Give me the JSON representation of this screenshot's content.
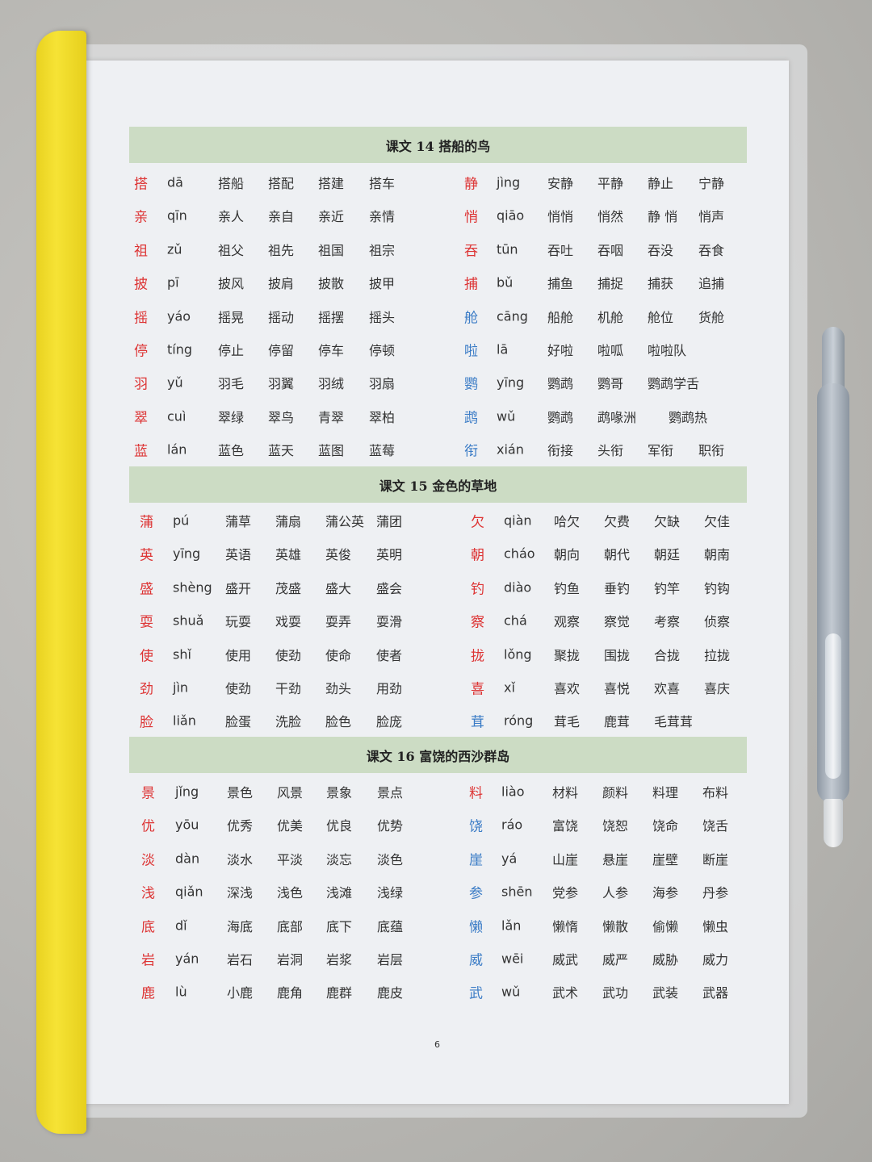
{
  "colors": {
    "red": "#dd3434",
    "blue": "#3b7cc6",
    "header_bg": "#ccdcc4"
  },
  "page_number": "6",
  "sections": [
    {
      "title": "课文 14  搭船的鸟",
      "left": [
        {
          "char": "搭",
          "pinyin": "dā",
          "color": "red",
          "words": [
            "搭船",
            "搭配",
            "搭建",
            "搭车"
          ]
        },
        {
          "char": "亲",
          "pinyin": "qīn",
          "color": "red",
          "words": [
            "亲人",
            "亲自",
            "亲近",
            "亲情"
          ]
        },
        {
          "char": "祖",
          "pinyin": "zǔ",
          "color": "red",
          "words": [
            "祖父",
            "祖先",
            "祖国",
            "祖宗"
          ]
        },
        {
          "char": "披",
          "pinyin": "pī",
          "color": "red",
          "words": [
            "披风",
            "披肩",
            "披散",
            "披甲"
          ]
        },
        {
          "char": "摇",
          "pinyin": "yáo",
          "color": "red",
          "words": [
            "摇晃",
            "摇动",
            "摇摆",
            "摇头"
          ]
        },
        {
          "char": "停",
          "pinyin": "tíng",
          "color": "red",
          "words": [
            "停止",
            "停留",
            "停车",
            "停顿"
          ]
        },
        {
          "char": "羽",
          "pinyin": "yǔ",
          "color": "red",
          "words": [
            "羽毛",
            "羽翼",
            "羽绒",
            "羽扇"
          ]
        },
        {
          "char": "翠",
          "pinyin": "cuì",
          "color": "red",
          "words": [
            "翠绿",
            "翠鸟",
            "青翠",
            "翠柏"
          ]
        },
        {
          "char": "蓝",
          "pinyin": "lán",
          "color": "red",
          "words": [
            "蓝色",
            "蓝天",
            "蓝图",
            "蓝莓"
          ]
        }
      ],
      "right": [
        {
          "char": "静",
          "pinyin": "jìng",
          "color": "red",
          "words": [
            "安静",
            "平静",
            "静止",
            "宁静"
          ]
        },
        {
          "char": "悄",
          "pinyin": "qiāo",
          "color": "red",
          "words": [
            "悄悄",
            "悄然",
            "静 悄",
            "悄声"
          ]
        },
        {
          "char": "吞",
          "pinyin": "tūn",
          "color": "red",
          "words": [
            "吞吐",
            "吞咽",
            "吞没",
            "吞食"
          ]
        },
        {
          "char": "捕",
          "pinyin": "bǔ",
          "color": "red",
          "words": [
            "捕鱼",
            "捕捉",
            "捕获",
            "追捕"
          ]
        },
        {
          "char": "舱",
          "pinyin": "cāng",
          "color": "blue",
          "words": [
            "船舱",
            "机舱",
            "舱位",
            "货舱"
          ]
        },
        {
          "char": "啦",
          "pinyin": "lā",
          "color": "blue",
          "words": [
            "好啦",
            "啦呱",
            "啦啦队"
          ]
        },
        {
          "char": "鹦",
          "pinyin": "yīng",
          "color": "blue",
          "words": [
            "鹦鹉",
            "鹦哥",
            "鹦鹉学舌"
          ]
        },
        {
          "char": "鹉",
          "pinyin": "wǔ",
          "color": "blue",
          "words": [
            "鹦鹉",
            "鹉喙洲",
            "鹦鹉热"
          ]
        },
        {
          "char": "衔",
          "pinyin": "xián",
          "color": "blue",
          "words": [
            "衔接",
            "头衔",
            "军衔",
            "职衔"
          ]
        }
      ]
    },
    {
      "title": "课文 15  金色的草地",
      "left": [
        {
          "char": "蒲",
          "pinyin": "pú",
          "color": "red",
          "words": [
            "蒲草",
            "蒲扇",
            "蒲公英",
            "蒲团"
          ]
        },
        {
          "char": "英",
          "pinyin": "yīng",
          "color": "red",
          "words": [
            "英语",
            "英雄",
            "英俊",
            "英明"
          ]
        },
        {
          "char": "盛",
          "pinyin": "shèng",
          "color": "red",
          "words": [
            "盛开",
            "茂盛",
            "盛大",
            "盛会"
          ]
        },
        {
          "char": "耍",
          "pinyin": "shuǎ",
          "color": "red",
          "words": [
            "玩耍",
            "戏耍",
            "耍弄",
            "耍滑"
          ]
        },
        {
          "char": "使",
          "pinyin": "shǐ",
          "color": "red",
          "words": [
            "使用",
            "使劲",
            "使命",
            "使者"
          ]
        },
        {
          "char": "劲",
          "pinyin": "jìn",
          "color": "red",
          "words": [
            "使劲",
            "干劲",
            "劲头",
            "用劲"
          ]
        },
        {
          "char": "脸",
          "pinyin": "liǎn",
          "color": "red",
          "words": [
            "脸蛋",
            "洗脸",
            "脸色",
            "脸庞"
          ]
        }
      ],
      "right": [
        {
          "char": "欠",
          "pinyin": "qiàn",
          "color": "red",
          "words": [
            "哈欠",
            "欠费",
            "欠缺",
            "欠佳"
          ]
        },
        {
          "char": "朝",
          "pinyin": "cháo",
          "color": "red",
          "words": [
            "朝向",
            "朝代",
            "朝廷",
            "朝南"
          ]
        },
        {
          "char": "钓",
          "pinyin": "diào",
          "color": "red",
          "words": [
            "钓鱼",
            "垂钓",
            "钓竿",
            "钓钩"
          ]
        },
        {
          "char": "察",
          "pinyin": "chá",
          "color": "red",
          "words": [
            "观察",
            "察觉",
            "考察",
            "侦察"
          ]
        },
        {
          "char": "拢",
          "pinyin": "lǒng",
          "color": "red",
          "words": [
            "聚拢",
            "围拢",
            "合拢",
            "拉拢"
          ]
        },
        {
          "char": "喜",
          "pinyin": "xǐ",
          "color": "red",
          "words": [
            "喜欢",
            "喜悦",
            "欢喜",
            "喜庆"
          ]
        },
        {
          "char": "茸",
          "pinyin": "róng",
          "color": "blue",
          "words": [
            "茸毛",
            "鹿茸",
            "毛茸茸"
          ]
        }
      ]
    },
    {
      "title": "课文 16  富饶的西沙群岛",
      "left": [
        {
          "char": "景",
          "pinyin": "jǐng",
          "color": "red",
          "words": [
            "景色",
            "风景",
            "景象",
            "景点"
          ]
        },
        {
          "char": "优",
          "pinyin": "yōu",
          "color": "red",
          "words": [
            "优秀",
            "优美",
            "优良",
            "优势"
          ]
        },
        {
          "char": "淡",
          "pinyin": "dàn",
          "color": "red",
          "words": [
            "淡水",
            "平淡",
            "淡忘",
            "淡色"
          ]
        },
        {
          "char": "浅",
          "pinyin": "qiǎn",
          "color": "red",
          "words": [
            "深浅",
            "浅色",
            "浅滩",
            "浅绿"
          ]
        },
        {
          "char": "底",
          "pinyin": "dǐ",
          "color": "red",
          "words": [
            "海底",
            "底部",
            "底下",
            "底蕴"
          ]
        },
        {
          "char": "岩",
          "pinyin": "yán",
          "color": "red",
          "words": [
            "岩石",
            "岩洞",
            "岩浆",
            "岩层"
          ]
        },
        {
          "char": "鹿",
          "pinyin": "lù",
          "color": "red",
          "words": [
            "小鹿",
            "鹿角",
            "鹿群",
            "鹿皮"
          ]
        }
      ],
      "right": [
        {
          "char": "料",
          "pinyin": "liào",
          "color": "red",
          "words": [
            "材料",
            "颜料",
            "料理",
            "布料"
          ]
        },
        {
          "char": "饶",
          "pinyin": "ráo",
          "color": "blue",
          "words": [
            "富饶",
            "饶恕",
            "饶命",
            "饶舌"
          ]
        },
        {
          "char": "崖",
          "pinyin": "yá",
          "color": "blue",
          "words": [
            "山崖",
            "悬崖",
            "崖壁",
            "断崖"
          ]
        },
        {
          "char": "参",
          "pinyin": "shēn",
          "color": "blue",
          "words": [
            "党参",
            "人参",
            "海参",
            "丹参"
          ]
        },
        {
          "char": "懒",
          "pinyin": "lǎn",
          "color": "blue",
          "words": [
            "懒惰",
            "懒散",
            "偷懒",
            "懒虫"
          ]
        },
        {
          "char": "威",
          "pinyin": "wēi",
          "color": "blue",
          "words": [
            "威武",
            "威严",
            "威胁",
            "威力"
          ]
        },
        {
          "char": "武",
          "pinyin": "wǔ",
          "color": "blue",
          "words": [
            "武术",
            "武功",
            "武装",
            "武器"
          ]
        }
      ]
    }
  ]
}
